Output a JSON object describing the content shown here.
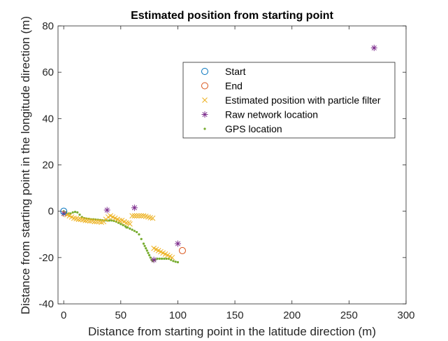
{
  "chart_data": {
    "type": "scatter",
    "title": "Estimated position from starting point",
    "xlabel": "Distance from starting point in the latitude direction (m)",
    "ylabel": "Distance from starting point in the longitude direction (m)",
    "xlim": [
      -5,
      300
    ],
    "ylim": [
      -40,
      80
    ],
    "xticks": [
      0,
      50,
      100,
      150,
      200,
      250,
      300
    ],
    "yticks": [
      -40,
      -20,
      0,
      20,
      40,
      60,
      80
    ],
    "grid": false,
    "legend_position": "top-right",
    "series": [
      {
        "name": "Start",
        "marker": "circle",
        "color": "#0072BD",
        "points": [
          [
            0,
            0
          ]
        ]
      },
      {
        "name": "End",
        "marker": "circle",
        "color": "#D95319",
        "points": [
          [
            104,
            -17
          ]
        ]
      },
      {
        "name": "Estimated position with particle filter",
        "marker": "x",
        "color": "#EDB120",
        "points": [
          [
            1,
            -1
          ],
          [
            3,
            -1.5
          ],
          [
            5,
            -2
          ],
          [
            7,
            -2.5
          ],
          [
            9,
            -3
          ],
          [
            11,
            -3.2
          ],
          [
            13,
            -3.5
          ],
          [
            15,
            -3.5
          ],
          [
            17,
            -3.7
          ],
          [
            19,
            -4
          ],
          [
            21,
            -4
          ],
          [
            23,
            -4.2
          ],
          [
            25,
            -4.2
          ],
          [
            27,
            -4.5
          ],
          [
            29,
            -4.5
          ],
          [
            31,
            -4.5
          ],
          [
            33,
            -4.7
          ],
          [
            35,
            -4.5
          ],
          [
            37,
            -3.5
          ],
          [
            39,
            -2.5
          ],
          [
            41,
            -2
          ],
          [
            43,
            -2.5
          ],
          [
            45,
            -3
          ],
          [
            47,
            -3.5
          ],
          [
            49,
            -4
          ],
          [
            51,
            -4
          ],
          [
            53,
            -4.5
          ],
          [
            55,
            -5
          ],
          [
            57,
            -5
          ],
          [
            58,
            -5.5
          ],
          [
            60,
            -2
          ],
          [
            62,
            -2
          ],
          [
            64,
            -2
          ],
          [
            66,
            -2
          ],
          [
            68,
            -2
          ],
          [
            70,
            -2
          ],
          [
            72,
            -2.2
          ],
          [
            74,
            -2.5
          ],
          [
            76,
            -2.8
          ],
          [
            78,
            -3
          ],
          [
            79,
            -16
          ],
          [
            81,
            -16.5
          ],
          [
            83,
            -17
          ],
          [
            85,
            -17.5
          ],
          [
            87,
            -18
          ],
          [
            89,
            -18.5
          ],
          [
            91,
            -19
          ],
          [
            93,
            -19.5
          ],
          [
            95,
            -20
          ]
        ]
      },
      {
        "name": "Raw network location",
        "marker": "asterisk",
        "color": "#7E2F8E",
        "points": [
          [
            0,
            -1
          ],
          [
            38,
            0.5
          ],
          [
            62,
            1.5
          ],
          [
            79,
            -21
          ],
          [
            100,
            -14
          ],
          [
            272,
            70.5
          ]
        ]
      },
      {
        "name": "GPS location",
        "marker": "dot",
        "color": "#77AC30",
        "points": [
          [
            0,
            0
          ],
          [
            2,
            -0.5
          ],
          [
            4,
            -1
          ],
          [
            6,
            -1
          ],
          [
            8,
            -0.5
          ],
          [
            10,
            -0.3
          ],
          [
            12,
            -0.5
          ],
          [
            14,
            -1.5
          ],
          [
            16,
            -2.5
          ],
          [
            18,
            -3
          ],
          [
            20,
            -3.2
          ],
          [
            22,
            -3.3
          ],
          [
            24,
            -3.5
          ],
          [
            26,
            -3.5
          ],
          [
            28,
            -3.6
          ],
          [
            30,
            -3.7
          ],
          [
            32,
            -3.8
          ],
          [
            34,
            -3.9
          ],
          [
            36,
            -4
          ],
          [
            38,
            -4
          ],
          [
            40,
            -4
          ],
          [
            42,
            -4
          ],
          [
            44,
            -4.2
          ],
          [
            46,
            -4.5
          ],
          [
            48,
            -5
          ],
          [
            50,
            -5.5
          ],
          [
            52,
            -6
          ],
          [
            54,
            -6.5
          ],
          [
            55,
            -7
          ],
          [
            56,
            -7
          ],
          [
            58,
            -7.5
          ],
          [
            60,
            -8
          ],
          [
            62,
            -8.5
          ],
          [
            64,
            -9
          ],
          [
            66,
            -10
          ],
          [
            68,
            -12
          ],
          [
            70,
            -14
          ],
          [
            71,
            -15
          ],
          [
            72,
            -16
          ],
          [
            73,
            -17
          ],
          [
            74,
            -18
          ],
          [
            75,
            -19
          ],
          [
            76,
            -20
          ],
          [
            77,
            -21
          ],
          [
            78,
            -21.5
          ],
          [
            80,
            -21
          ],
          [
            82,
            -20.5
          ],
          [
            84,
            -20.5
          ],
          [
            86,
            -20.5
          ],
          [
            88,
            -20.5
          ],
          [
            90,
            -20.5
          ],
          [
            92,
            -20.5
          ],
          [
            94,
            -21
          ],
          [
            96,
            -21.5
          ],
          [
            98,
            -21.8
          ],
          [
            100,
            -22
          ]
        ]
      }
    ]
  }
}
